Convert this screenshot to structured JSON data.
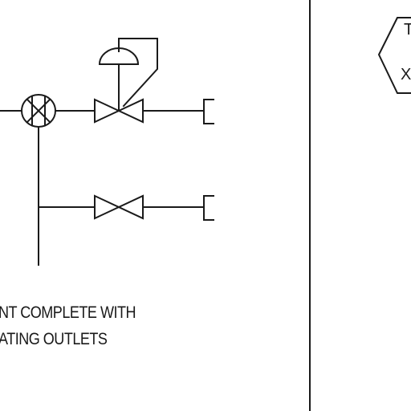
{
  "caption": {
    "line1": "NT COMPLETE WITH",
    "line2": "ATING OUTLETS"
  },
  "tag": {
    "top": "T",
    "bottom": "X"
  },
  "colors": {
    "line": "#1a1a1a",
    "background": "#ffffff"
  }
}
